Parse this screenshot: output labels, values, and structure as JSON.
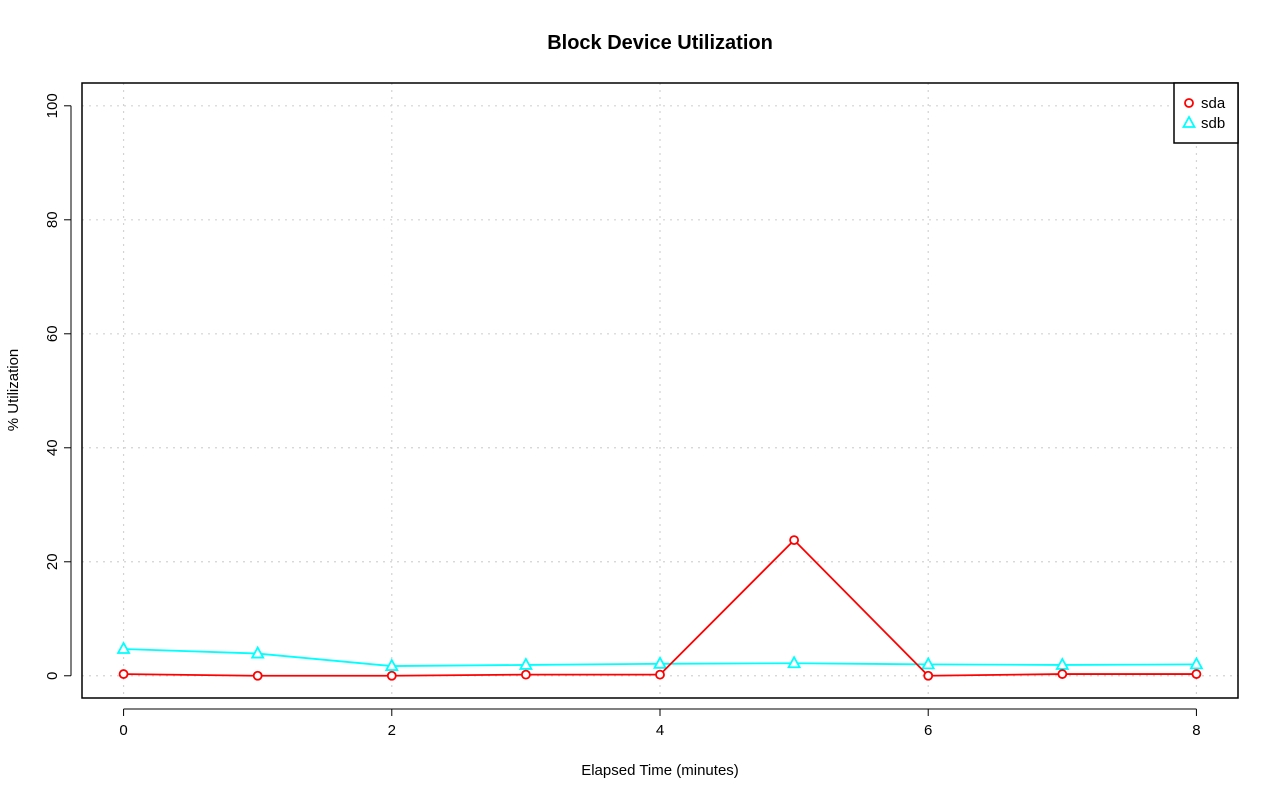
{
  "chart_data": {
    "type": "line",
    "title": "Block Device Utilization",
    "xlabel": "Elapsed Time (minutes)",
    "ylabel": "% Utilization",
    "xlim": [
      -0.31,
      8.31
    ],
    "ylim": [
      -3.9,
      104
    ],
    "x_ticks": [
      0,
      2,
      4,
      6,
      8
    ],
    "y_ticks": [
      0,
      20,
      40,
      60,
      80,
      100
    ],
    "grid": true,
    "legend_position": "top-right",
    "x": [
      0,
      1,
      2,
      3,
      4,
      5,
      6,
      7,
      8
    ],
    "series": [
      {
        "name": "sda",
        "color": "#ff0000",
        "marker": "circle",
        "values": [
          0.3,
          0.0,
          0.0,
          0.2,
          0.2,
          23.8,
          0.0,
          0.3,
          0.3
        ]
      },
      {
        "name": "sdb",
        "color": "#00ffff",
        "marker": "triangle",
        "values": [
          4.7,
          3.9,
          1.7,
          1.9,
          2.1,
          2.2,
          2.0,
          1.9,
          2.0
        ]
      }
    ]
  }
}
